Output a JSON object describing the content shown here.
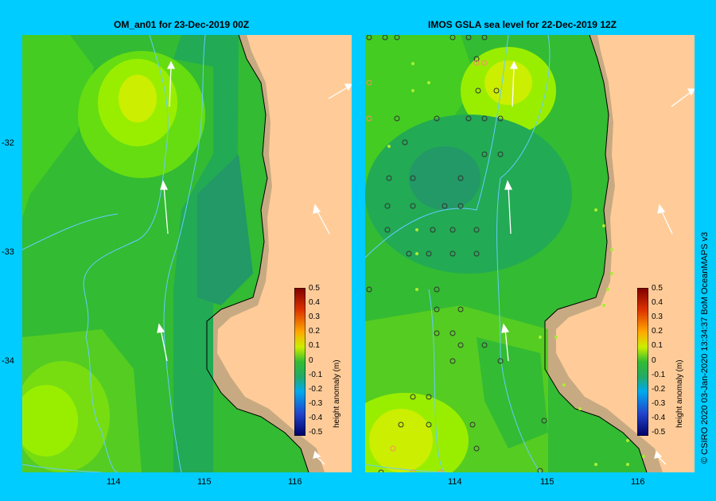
{
  "panels": [
    {
      "title": "OM_an01  for 23-Dec-2019 00Z"
    },
    {
      "title": "IMOS GSLA sea level  for 22-Dec-2019 12Z"
    }
  ],
  "y_ticks": [
    "-32",
    "-33",
    "-34"
  ],
  "x_ticks": [
    "114",
    "115",
    "116"
  ],
  "colorbar": {
    "title": "height anomaly (m)",
    "labels": [
      "0.5",
      "0.4",
      "0.3",
      "0.2",
      "0.1",
      "0",
      "-0.1",
      "-0.2",
      "-0.3",
      "-0.4",
      "-0.5"
    ]
  },
  "credit": "© CSIRO 2020   03-Jan-2020 13:34:37 BoM OceanMAPS v3",
  "colors": {
    "background": "#00ccff",
    "land": "#ffcc99",
    "shelf": "#c8aa82",
    "contour": "#66ccff"
  }
}
